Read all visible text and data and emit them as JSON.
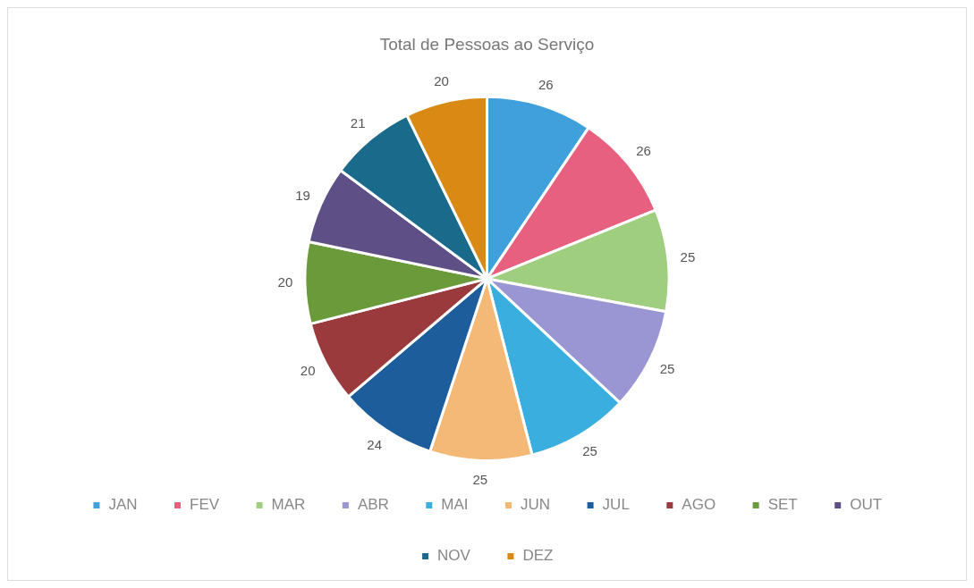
{
  "chart_data": {
    "type": "pie",
    "title": "Total de Pessoas ao Serviço",
    "categories": [
      "JAN",
      "FEV",
      "MAR",
      "ABR",
      "MAI",
      "JUN",
      "JUL",
      "AGO",
      "SET",
      "OUT",
      "NOV",
      "DEZ"
    ],
    "values": [
      26,
      26,
      25,
      25,
      25,
      25,
      24,
      20,
      20,
      19,
      21,
      20
    ],
    "colors": [
      "#3fa0db",
      "#e8607f",
      "#9fcf7e",
      "#9a96d4",
      "#3aaedf",
      "#f4b877",
      "#1d5d9c",
      "#9b3a3c",
      "#6b9a3a",
      "#5e4f86",
      "#1a6a8c",
      "#d88a14"
    ],
    "data_labels": true,
    "legend": "bottom"
  }
}
